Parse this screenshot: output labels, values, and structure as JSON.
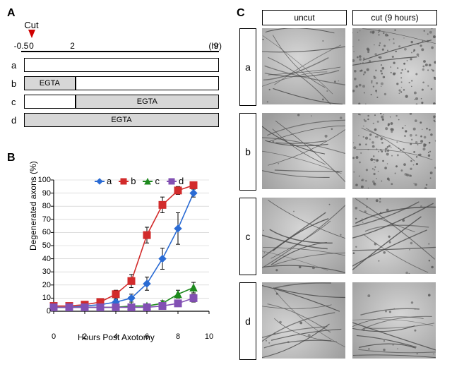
{
  "panelA": {
    "label": "A",
    "cut_label": "Cut",
    "time_unit": "(hr)",
    "ticks": [
      -0.5,
      0,
      2,
      9
    ],
    "rows": [
      {
        "label": "a",
        "segments": [
          {
            "from": -0.5,
            "to": 9,
            "fill": "#ffffff",
            "text": ""
          }
        ]
      },
      {
        "label": "b",
        "segments": [
          {
            "from": -0.5,
            "to": 2,
            "fill": "#d7d7d7",
            "text": "EGTA"
          },
          {
            "from": 2,
            "to": 9,
            "fill": "#ffffff",
            "text": ""
          }
        ]
      },
      {
        "label": "c",
        "segments": [
          {
            "from": -0.5,
            "to": 2,
            "fill": "#ffffff",
            "text": ""
          },
          {
            "from": 2,
            "to": 9,
            "fill": "#d7d7d7",
            "text": "EGTA"
          }
        ]
      },
      {
        "label": "d",
        "segments": [
          {
            "from": -0.5,
            "to": 9,
            "fill": "#d7d7d7",
            "text": "EGTA"
          }
        ]
      }
    ],
    "arrow_color": "#d00000"
  },
  "panelB": {
    "label": "B",
    "xlabel": "Hours Post Axotomy",
    "ylabel": "Degenerated axons (%)",
    "xlim": [
      0,
      10
    ],
    "ylim": [
      0,
      100
    ],
    "xtick_step": 2,
    "ytick_step": 10,
    "axis_color": "#000000",
    "grid_color": "#c9c9c9",
    "background": "#ffffff",
    "label_fontsize": 12,
    "tick_fontsize": 11,
    "marker_size": 5,
    "line_width": 1.6,
    "error_bar_color": "#000000",
    "series": [
      {
        "name": "a",
        "label": "a",
        "color": "#2a6bd4",
        "marker": "diamond",
        "x": [
          0,
          1,
          2,
          3,
          4,
          5,
          6,
          7,
          8,
          9
        ],
        "y": [
          3,
          3,
          4,
          5,
          7,
          10,
          21,
          40,
          63,
          90
        ],
        "err": [
          0,
          0,
          1,
          1,
          2,
          3,
          5,
          8,
          12,
          3
        ]
      },
      {
        "name": "b",
        "label": "b",
        "color": "#d22b2b",
        "marker": "square",
        "x": [
          0,
          1,
          2,
          3,
          4,
          5,
          6,
          7,
          8,
          9
        ],
        "y": [
          4,
          4,
          5,
          7,
          13,
          23,
          58,
          81,
          92,
          96
        ],
        "err": [
          0,
          0,
          1,
          2,
          3,
          5,
          6,
          6,
          3,
          2
        ]
      },
      {
        "name": "c",
        "label": "c",
        "color": "#1e8a1e",
        "marker": "triangle",
        "x": [
          0,
          1,
          2,
          3,
          4,
          5,
          6,
          7,
          8,
          9
        ],
        "y": [
          3,
          3,
          3,
          3,
          3,
          4,
          4,
          6,
          13,
          18
        ],
        "err": [
          0,
          0,
          0,
          0,
          1,
          1,
          1,
          2,
          3,
          4
        ]
      },
      {
        "name": "d",
        "label": "d",
        "color": "#8250b3",
        "marker": "square",
        "x": [
          0,
          1,
          2,
          3,
          4,
          5,
          6,
          7,
          8,
          9
        ],
        "y": [
          3,
          3,
          3,
          3,
          3,
          3,
          3,
          4,
          6,
          10
        ],
        "err": [
          0,
          0,
          0,
          0,
          0,
          0,
          1,
          1,
          2,
          3
        ]
      }
    ]
  },
  "panelC": {
    "label": "C",
    "col_headers": [
      "uncut",
      "cut (9 hours)"
    ],
    "row_labels": [
      "a",
      "b",
      "c",
      "d"
    ],
    "image_bg_low": "#9c9c9c",
    "image_bg_high": "#d6d6d6",
    "axon_color": "#4a4a4a",
    "frag_color": "#5a5a5a",
    "degeneration": {
      "a": {
        "uncut": 0.05,
        "cut": 0.9
      },
      "b": {
        "uncut": 0.05,
        "cut": 0.96
      },
      "c": {
        "uncut": 0.05,
        "cut": 0.18
      },
      "d": {
        "uncut": 0.05,
        "cut": 0.1
      }
    }
  }
}
